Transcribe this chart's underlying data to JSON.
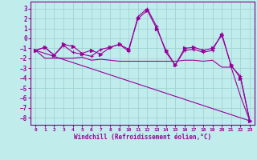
{
  "bg_color": "#c0ecec",
  "grid_color": "#a0d4d4",
  "line_color": "#990099",
  "xlabel": "Windchill (Refroidissement éolien,°C)",
  "xlim": [
    -0.5,
    23.5
  ],
  "ylim": [
    -8.7,
    3.7
  ],
  "yticks": [
    -8,
    -7,
    -6,
    -5,
    -4,
    -3,
    -2,
    -1,
    0,
    1,
    2,
    3
  ],
  "xticks": [
    0,
    1,
    2,
    3,
    4,
    5,
    6,
    7,
    8,
    9,
    10,
    11,
    12,
    13,
    14,
    15,
    16,
    17,
    18,
    19,
    20,
    21,
    22,
    23
  ],
  "series": [
    {
      "x": [
        0,
        1,
        2,
        3,
        4,
        5,
        6,
        7,
        8,
        9,
        10,
        11,
        12,
        13,
        14,
        15,
        16,
        17,
        18,
        19,
        20,
        21,
        22,
        23
      ],
      "y": [
        -1.2,
        -0.9,
        -1.7,
        -0.7,
        -1.4,
        -1.6,
        -1.8,
        -1.1,
        -0.9,
        -0.6,
        -1.3,
        2.2,
        3.0,
        1.2,
        -1.4,
        -2.7,
        -1.2,
        -1.1,
        -1.4,
        -1.2,
        0.5,
        -2.8,
        -3.8,
        -8.3
      ],
      "marker": "+"
    },
    {
      "x": [
        0,
        1,
        2,
        3,
        4,
        5,
        6,
        7,
        8,
        9,
        10,
        11,
        12,
        13,
        14,
        15,
        16,
        17,
        18,
        19,
        20,
        21,
        22,
        23
      ],
      "y": [
        -1.2,
        -0.9,
        -1.7,
        -0.6,
        -0.8,
        -1.5,
        -1.2,
        -1.6,
        -0.9,
        -0.6,
        -1.1,
        2.0,
        2.8,
        1.0,
        -1.2,
        -2.7,
        -1.0,
        -0.9,
        -1.2,
        -1.0,
        0.3,
        -2.7,
        -4.0,
        -8.3
      ],
      "marker": ">"
    },
    {
      "x": [
        0,
        1,
        2,
        3,
        4,
        5,
        6,
        7,
        8,
        9,
        10,
        11,
        12,
        13,
        14,
        15,
        16,
        17,
        18,
        19,
        20,
        21,
        22,
        23
      ],
      "y": [
        -1.2,
        -2.0,
        -2.0,
        -2.0,
        -2.0,
        -1.9,
        -2.2,
        -2.1,
        -2.2,
        -2.3,
        -2.3,
        -2.3,
        -2.3,
        -2.3,
        -2.3,
        -2.3,
        -2.2,
        -2.2,
        -2.3,
        -2.2,
        -2.9,
        -2.9,
        -5.8,
        -8.3
      ],
      "marker": null
    },
    {
      "x": [
        0,
        23
      ],
      "y": [
        -1.2,
        -8.3
      ],
      "marker": null
    }
  ]
}
